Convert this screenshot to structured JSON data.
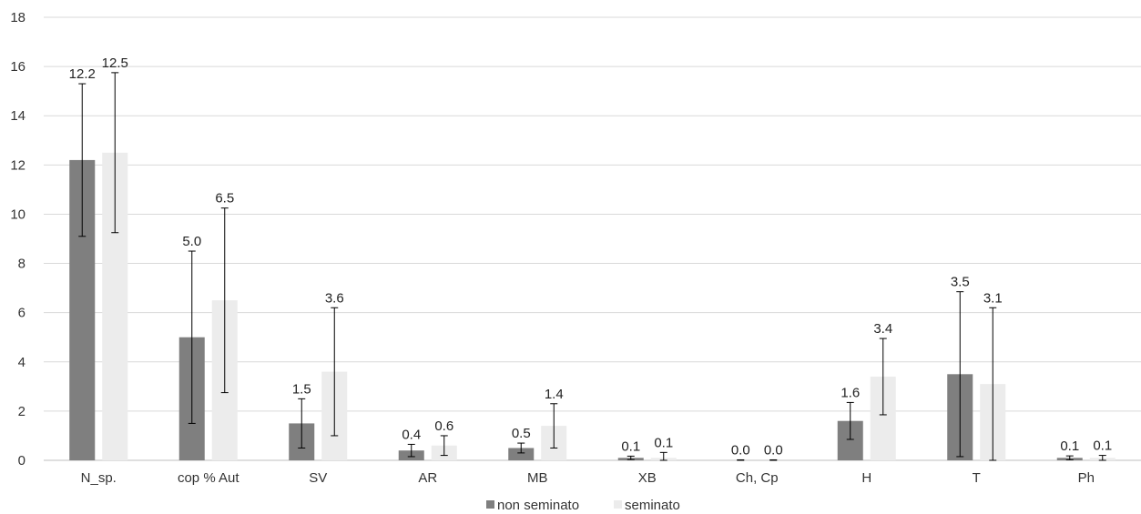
{
  "chart_data": {
    "type": "bar",
    "categories": [
      "N_sp.",
      "cop % Aut",
      "SV",
      "AR",
      "MB",
      "XB",
      "Ch, Cp",
      "H",
      "T",
      "Ph"
    ],
    "series": [
      {
        "name": "non seminato",
        "color": "#7f7f7f",
        "values": [
          12.2,
          5.0,
          1.5,
          0.4,
          0.5,
          0.1,
          0.0,
          1.6,
          3.5,
          0.1
        ],
        "labels": [
          "12.2",
          "5.0",
          "1.5",
          "0.4",
          "0.5",
          "0.1",
          "0.0",
          "1.6",
          "3.5",
          "0.1"
        ],
        "error": [
          3.1,
          3.5,
          1.0,
          0.25,
          0.2,
          0.07,
          0.02,
          0.75,
          3.35,
          0.08
        ]
      },
      {
        "name": "seminato",
        "color": "#ececec",
        "values": [
          12.5,
          6.5,
          3.6,
          0.6,
          1.4,
          0.1,
          0.0,
          3.4,
          3.1,
          0.1
        ],
        "labels": [
          "12.5",
          "6.5",
          "3.6",
          "0.6",
          "1.4",
          "0.1",
          "0.0",
          "3.4",
          "3.1",
          "0.1"
        ],
        "error": [
          3.25,
          3.75,
          2.6,
          0.4,
          0.9,
          0.22,
          0.02,
          1.55,
          3.1,
          0.1
        ]
      }
    ],
    "yticks": [
      "0",
      "2",
      "4",
      "6",
      "8",
      "10",
      "12",
      "14",
      "16",
      "18"
    ],
    "ylim": [
      0,
      18
    ],
    "grid": true,
    "legend_position": "bottom"
  }
}
